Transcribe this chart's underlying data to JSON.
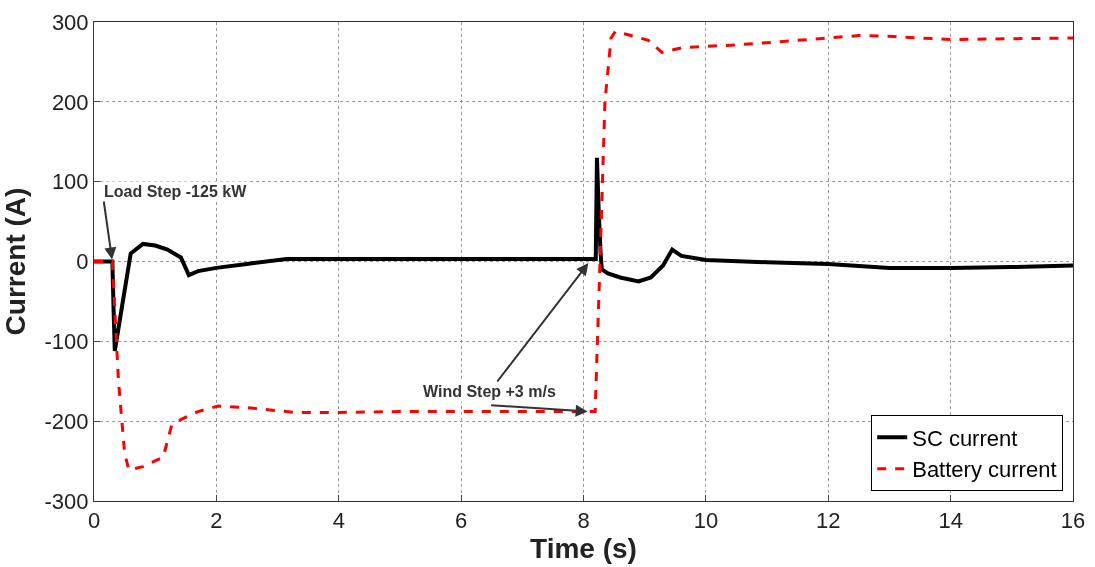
{
  "chart_data": {
    "type": "line",
    "xlabel": "Time (s)",
    "ylabel": "Current (A)",
    "xlim": [
      0,
      16
    ],
    "xticks": [
      0,
      2,
      4,
      6,
      8,
      10,
      12,
      14,
      16
    ],
    "ylim": [
      -300,
      300
    ],
    "yticks": [
      -300,
      -200,
      -100,
      0,
      100,
      200,
      300
    ],
    "grid": true,
    "legend": "bottom right",
    "series": [
      {
        "name": "SC current",
        "color": "#000000",
        "line_style": "solid",
        "x": [
          0,
          0.3,
          0.32,
          0.34,
          0.45,
          0.6,
          0.8,
          1.0,
          1.2,
          1.42,
          1.55,
          1.7,
          2.0,
          2.5,
          3.15,
          4,
          5,
          6,
          7,
          8.1,
          8.2,
          8.22,
          8.25,
          8.28,
          8.3,
          8.4,
          8.6,
          8.9,
          9.1,
          9.3,
          9.45,
          9.6,
          10,
          11,
          12,
          13,
          14,
          15,
          16
        ],
        "values": [
          0,
          0,
          -60,
          -112,
          -60,
          10,
          22,
          20,
          15,
          5,
          -17,
          -12,
          -8,
          -3,
          3,
          3,
          3,
          3,
          3,
          3,
          3,
          130,
          60,
          10,
          -10,
          -15,
          -20,
          -25,
          -20,
          -5,
          15,
          7,
          2,
          -1,
          -3,
          -8,
          -8,
          -7,
          -5
        ]
      },
      {
        "name": "Battery current",
        "color": "#ff0000",
        "line_style": "dashed",
        "x": [
          0,
          0.3,
          0.4,
          0.5,
          0.57,
          0.8,
          1.13,
          1.27,
          1.42,
          1.7,
          2.03,
          2.5,
          3.27,
          4,
          5,
          6,
          7,
          8.19,
          8.27,
          8.35,
          8.45,
          8.52,
          8.73,
          9.06,
          9.28,
          9.62,
          10.41,
          11,
          12,
          12.5,
          13,
          14,
          15,
          16
        ],
        "values": [
          0,
          0,
          -150,
          -240,
          -261,
          -257,
          -245,
          -205,
          -198,
          -188,
          -181,
          -183,
          -189,
          -189,
          -188,
          -188,
          -188,
          -188,
          0,
          200,
          280,
          288,
          284,
          277,
          262,
          268,
          271,
          274,
          280,
          283,
          282,
          278,
          279,
          280
        ]
      }
    ],
    "annotations": [
      {
        "text": "Load Step -125 kW",
        "x": 0.3,
        "y": 0
      },
      {
        "text": "Wind Step +3 m/s",
        "x": 8.1,
        "y": 0
      }
    ]
  }
}
